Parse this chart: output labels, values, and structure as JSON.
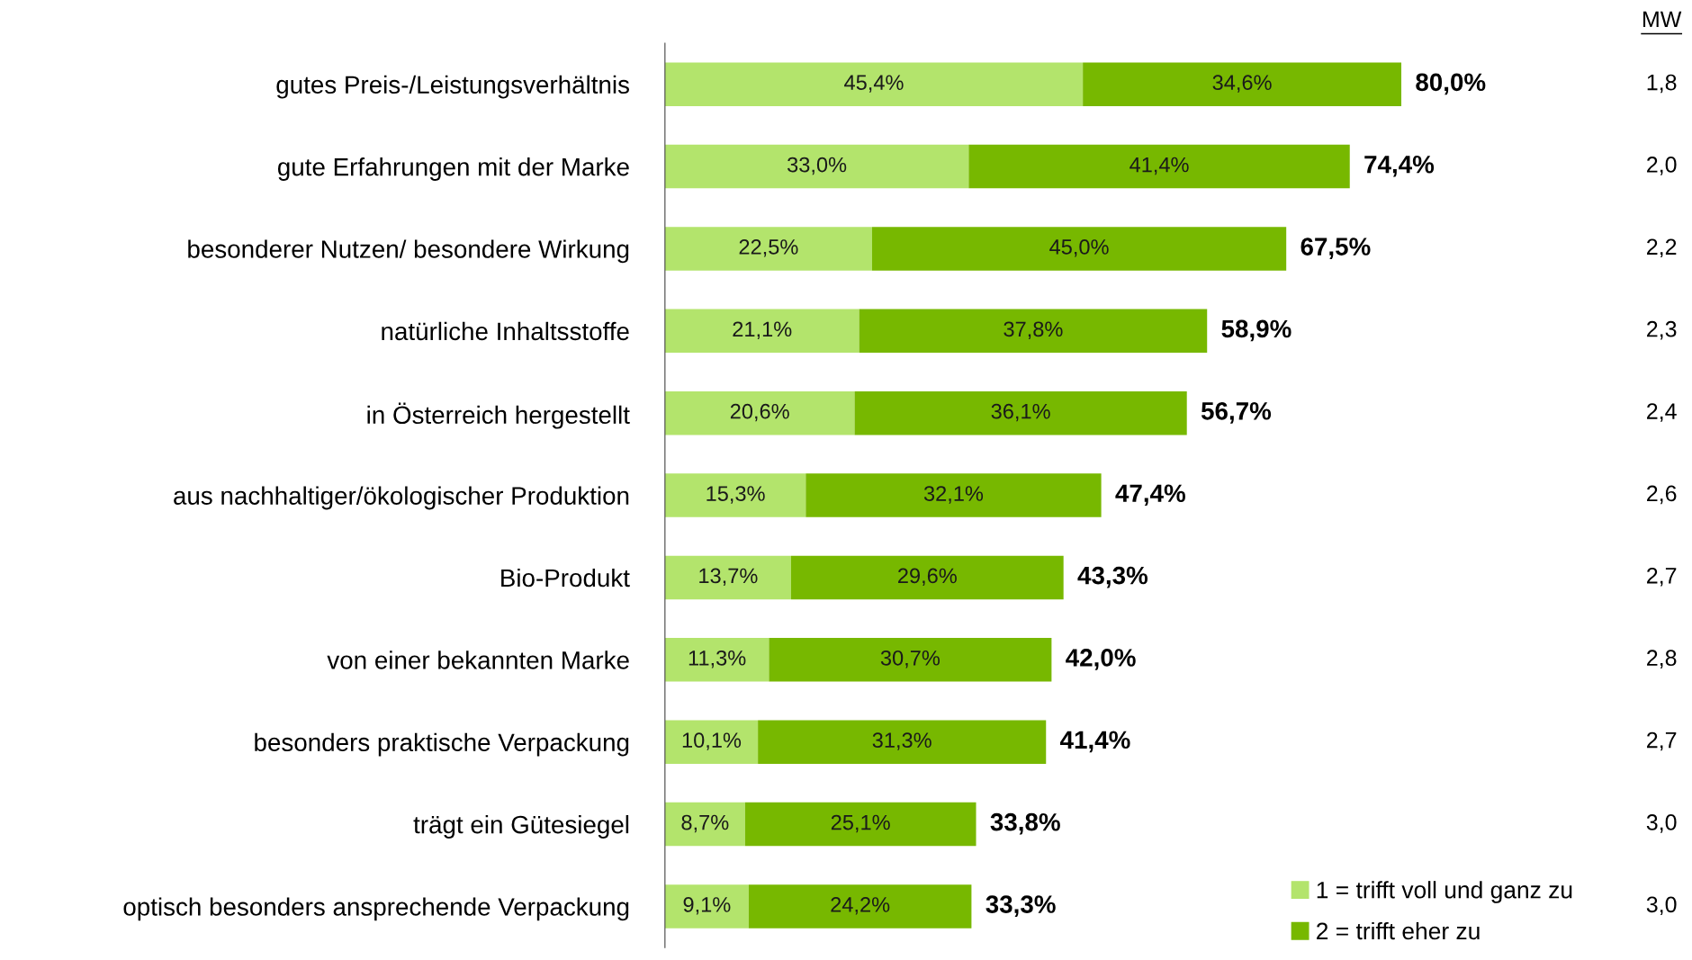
{
  "chart_data": {
    "type": "bar",
    "orientation": "horizontal",
    "stacked": true,
    "legend": "bottom right",
    "categories": [
      "gutes Preis-/Leistungsverhältnis",
      "gute Erfahrungen mit der Marke",
      "besonderer Nutzen/ besondere Wirkung",
      "natürliche Inhaltsstoffe",
      "in Österreich hergestellt",
      "aus nachhaltiger/ökologischer Produktion",
      "Bio-Produkt",
      "von einer bekannten Marke",
      "besonders praktische Verpackung",
      "trägt ein Gütesiegel",
      "optisch besonders ansprechende Verpackung"
    ],
    "series": [
      {
        "name": "1 = trifft voll und ganz zu",
        "color": "#b3e46c",
        "values": [
          45.4,
          33.0,
          22.5,
          21.1,
          20.6,
          15.3,
          13.7,
          11.3,
          10.1,
          8.7,
          9.1
        ],
        "value_labels": [
          "45,4%",
          "33,0%",
          "22,5%",
          "21,1%",
          "20,6%",
          "15,3%",
          "13,7%",
          "11,3%",
          "10,1%",
          "8,7%",
          "9,1%"
        ]
      },
      {
        "name": "2 = trifft eher zu",
        "color": "#77b800",
        "values": [
          34.6,
          41.4,
          45.0,
          37.8,
          36.1,
          32.1,
          29.6,
          30.7,
          31.3,
          25.1,
          24.2
        ],
        "value_labels": [
          "34,6%",
          "41,4%",
          "45,0%",
          "37,8%",
          "36,1%",
          "32,1%",
          "29,6%",
          "30,7%",
          "31,3%",
          "25,1%",
          "24,2%"
        ]
      }
    ],
    "totals": [
      "80,0%",
      "74,4%",
      "67,5%",
      "58,9%",
      "56,7%",
      "47,4%",
      "43,3%",
      "42,0%",
      "41,4%",
      "33,8%",
      "33,3%"
    ],
    "annotations": [
      "MW",
      "1,8",
      "2,0",
      "2,2",
      "2,3",
      "2,4",
      "2,6",
      "2,7",
      "2,8",
      "2,7",
      "3,0",
      "3,0"
    ]
  }
}
